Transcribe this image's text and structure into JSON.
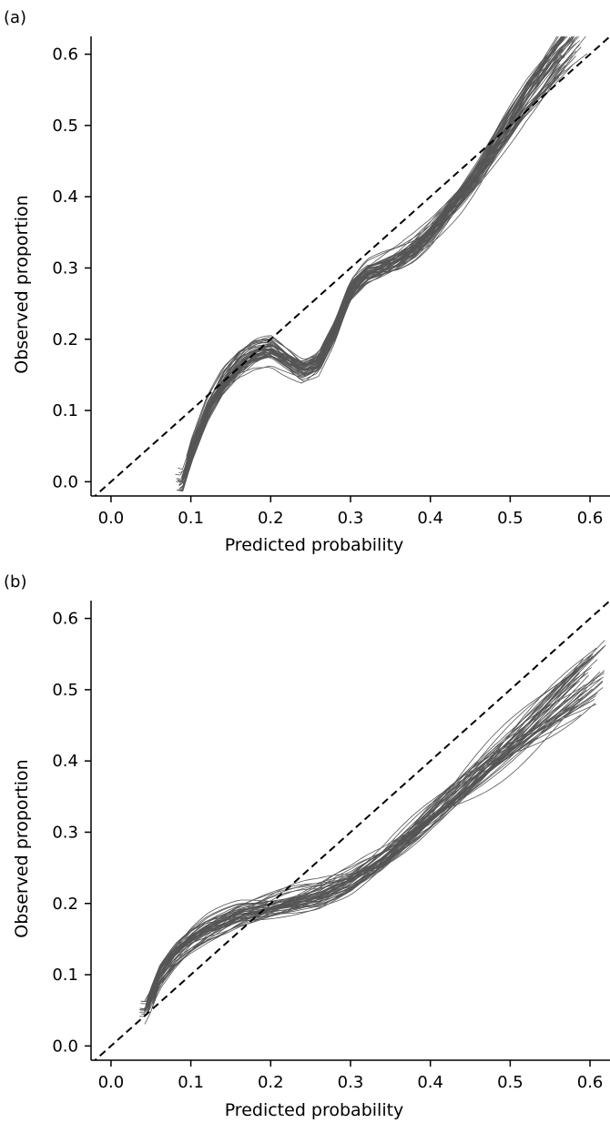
{
  "chart_data": [
    {
      "panel": "(a)",
      "type": "line",
      "xlabel": "Predicted probability",
      "ylabel": "Observed proportion",
      "xlim": [
        -0.025,
        0.625
      ],
      "ylim": [
        -0.02,
        0.625
      ],
      "xticks": [
        "0.0",
        "0.1",
        "0.2",
        "0.3",
        "0.4",
        "0.5",
        "0.6"
      ],
      "yticks": [
        "0.0",
        "0.1",
        "0.2",
        "0.3",
        "0.4",
        "0.5",
        "0.6"
      ],
      "reference_line": {
        "style": "dashed",
        "x": [
          -0.025,
          0.625
        ],
        "y": [
          -0.025,
          0.625
        ]
      },
      "grid": false,
      "line_color": "#555555",
      "base_curve": {
        "x": [
          0.09,
          0.1,
          0.12,
          0.14,
          0.16,
          0.18,
          0.2,
          0.22,
          0.24,
          0.26,
          0.28,
          0.3,
          0.32,
          0.34,
          0.36,
          0.38,
          0.4,
          0.42,
          0.44,
          0.46,
          0.48,
          0.5,
          0.52,
          0.54,
          0.56,
          0.58,
          0.6
        ],
        "y": [
          0.0,
          0.04,
          0.1,
          0.14,
          0.165,
          0.18,
          0.185,
          0.17,
          0.155,
          0.165,
          0.21,
          0.27,
          0.295,
          0.305,
          0.315,
          0.33,
          0.35,
          0.375,
          0.4,
          0.43,
          0.465,
          0.5,
          0.535,
          0.565,
          0.595,
          0.62,
          0.64
        ]
      },
      "n_curves": 50
    },
    {
      "panel": "(b)",
      "type": "line",
      "xlabel": "Predicted probability",
      "ylabel": "Observed proportion",
      "xlim": [
        -0.025,
        0.625
      ],
      "ylim": [
        -0.02,
        0.625
      ],
      "xticks": [
        "0.0",
        "0.1",
        "0.2",
        "0.3",
        "0.4",
        "0.5",
        "0.6"
      ],
      "yticks": [
        "0.0",
        "0.1",
        "0.2",
        "0.3",
        "0.4",
        "0.5",
        "0.6"
      ],
      "reference_line": {
        "style": "dashed",
        "x": [
          -0.025,
          0.625
        ],
        "y": [
          -0.025,
          0.625
        ]
      },
      "grid": false,
      "line_color": "#555555",
      "base_curve": {
        "x": [
          0.045,
          0.05,
          0.06,
          0.08,
          0.1,
          0.12,
          0.14,
          0.16,
          0.18,
          0.2,
          0.22,
          0.24,
          0.26,
          0.28,
          0.3,
          0.32,
          0.34,
          0.36,
          0.38,
          0.4,
          0.42,
          0.44,
          0.46,
          0.48,
          0.5,
          0.52,
          0.54,
          0.56,
          0.58,
          0.6,
          0.62
        ],
        "y": [
          0.05,
          0.07,
          0.1,
          0.13,
          0.15,
          0.165,
          0.175,
          0.185,
          0.19,
          0.195,
          0.2,
          0.205,
          0.21,
          0.22,
          0.23,
          0.245,
          0.26,
          0.28,
          0.3,
          0.32,
          0.34,
          0.36,
          0.38,
          0.4,
          0.42,
          0.44,
          0.46,
          0.48,
          0.5,
          0.52,
          0.54
        ]
      },
      "n_curves": 50
    }
  ]
}
